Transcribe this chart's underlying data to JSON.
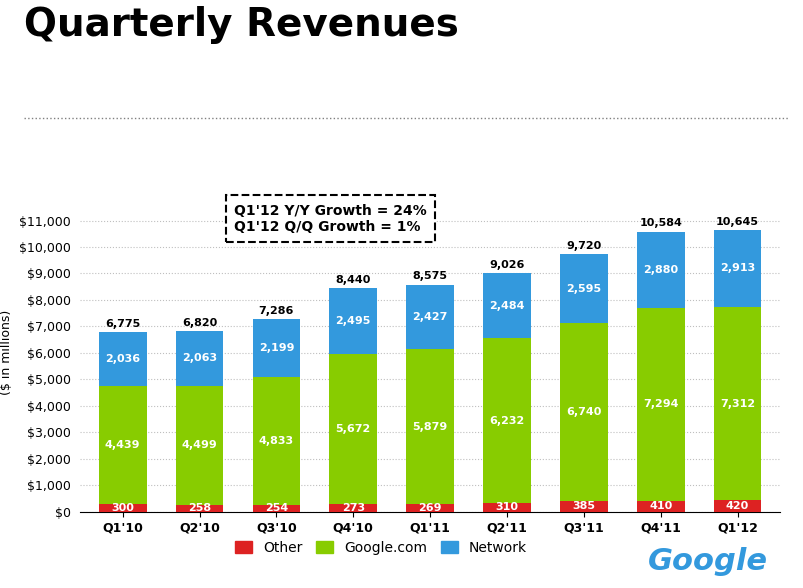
{
  "title": "Quarterly Revenues",
  "ylabel": "($ in millions)",
  "categories": [
    "Q1'10",
    "Q2'10",
    "Q3'10",
    "Q4'10",
    "Q1'11",
    "Q2'11",
    "Q3'11",
    "Q4'11",
    "Q1'12"
  ],
  "other": [
    300,
    258,
    254,
    273,
    269,
    310,
    385,
    410,
    420
  ],
  "google_com": [
    4439,
    4499,
    4833,
    5672,
    5879,
    6232,
    6740,
    7294,
    7312
  ],
  "network": [
    2036,
    2063,
    2199,
    2495,
    2427,
    2484,
    2595,
    2880,
    2913
  ],
  "totals": [
    6775,
    6820,
    7286,
    8440,
    8575,
    9026,
    9720,
    10584,
    10645
  ],
  "color_other": "#dd2222",
  "color_google": "#88cc00",
  "color_network": "#3399dd",
  "background_color": "#ffffff",
  "annotation_text": "Q1'12 Y/Y Growth = 24%\nQ1'12 Q/Q Growth = 1%",
  "ylim": [
    0,
    12000
  ],
  "yticks": [
    0,
    1000,
    2000,
    3000,
    4000,
    5000,
    6000,
    7000,
    8000,
    9000,
    10000,
    11000
  ],
  "ytick_labels": [
    "$0",
    "$1,000",
    "$2,000",
    "$3,000",
    "$4,000",
    "$5,000",
    "$6,000",
    "$7,000",
    "$8,000",
    "$9,000",
    "$10,000",
    "$11,000"
  ],
  "legend_labels": [
    "Other",
    "Google.com",
    "Network"
  ],
  "google_blue": "#3399dd",
  "google_green": "#88cc00",
  "title_fontsize": 28,
  "axis_fontsize": 9,
  "bar_label_fontsize": 8,
  "total_label_fontsize": 8,
  "bar_width": 0.62
}
